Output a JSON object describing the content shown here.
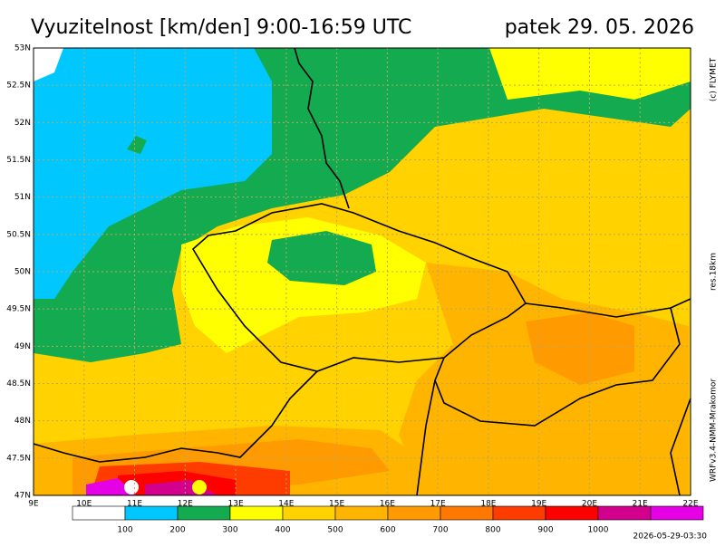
{
  "header": {
    "title": "Vyuzitelnost [km/den] 9:00-16:59 UTC",
    "date": "patek 29. 05. 2026"
  },
  "side_texts": {
    "copyright": "(c) FLYMET",
    "resolution": "res.18km",
    "model": "WRFv3.4-NMM-Mrakomor"
  },
  "footer": {
    "run": "2026-05-29-03:30"
  },
  "lat_labels": [
    "53N",
    "52.5N",
    "52N",
    "51.5N",
    "51N",
    "50.5N",
    "50N",
    "49.5N",
    "49N",
    "48.5N",
    "48N",
    "47.5N",
    "47N"
  ],
  "lon_labels": [
    "9E",
    "10E",
    "11E",
    "12E",
    "13E",
    "14E",
    "15E",
    "16E",
    "17E",
    "18E",
    "19E",
    "20E",
    "21E",
    "22E"
  ],
  "legend": {
    "colors": [
      "#ffffff",
      "#00c8ff",
      "#14aa50",
      "#ffff00",
      "#ffd200",
      "#ffb400",
      "#ff9b00",
      "#ff7800",
      "#ff3c00",
      "#ff0000",
      "#d2008c",
      "#e600e6"
    ],
    "labels": [
      "100",
      "200",
      "300",
      "400",
      "500",
      "600",
      "700",
      "800",
      "900",
      "1000"
    ]
  }
}
